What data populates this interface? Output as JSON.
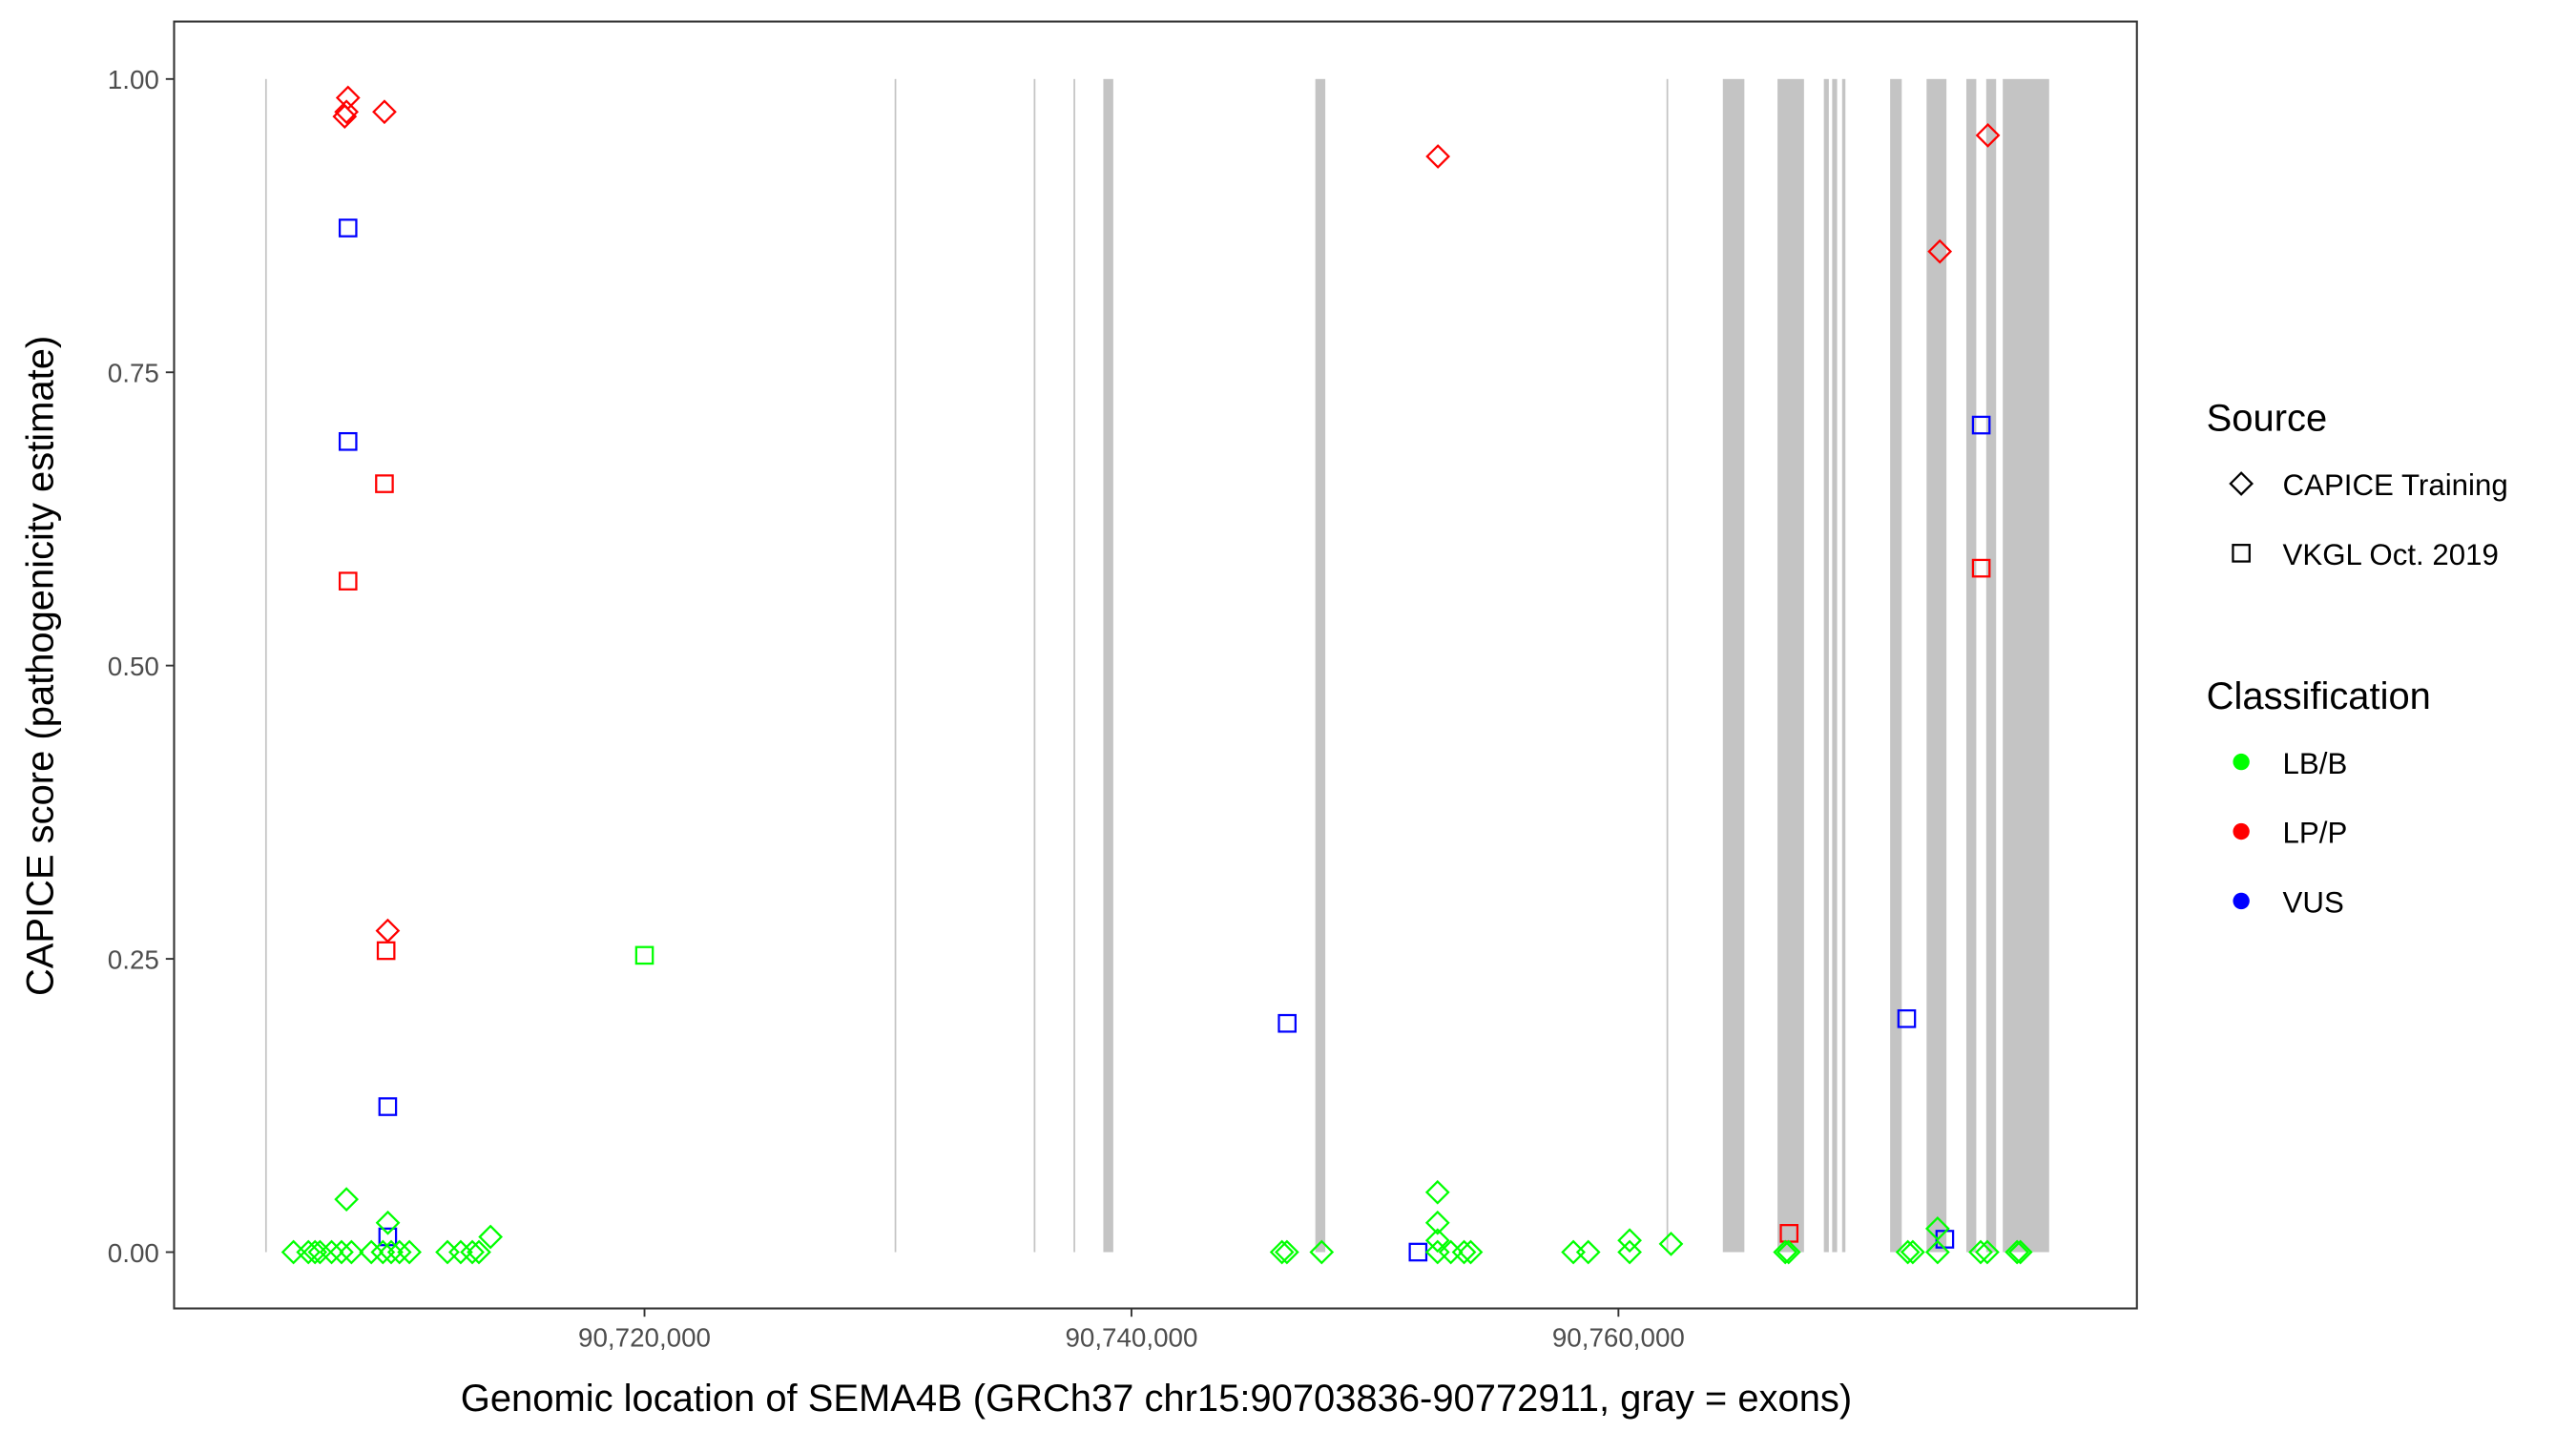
{
  "chart_data": {
    "type": "scatter",
    "xlabel": "Genomic location of SEMA4B (GRCh37 chr15:90703836-90772911, gray = exons)",
    "ylabel": "CAPICE score (pathogenicity estimate)",
    "xlim": [
      90700680,
      90781293
    ],
    "ylim": [
      -0.048,
      1.049
    ],
    "xticks": [
      {
        "value": 90720000,
        "label": "90,720,000"
      },
      {
        "value": 90740000,
        "label": "90,740,000"
      },
      {
        "value": 90760000,
        "label": "90,760,000"
      }
    ],
    "yticks": [
      {
        "value": 0,
        "label": "0.00"
      },
      {
        "value": 0.25,
        "label": "0.25"
      },
      {
        "value": 0.5,
        "label": "0.50"
      },
      {
        "value": 0.75,
        "label": "0.75"
      },
      {
        "value": 1,
        "label": "1.00"
      }
    ],
    "exon_color": "#c4c4c4",
    "exons": [
      [
        90704421,
        90704489
      ],
      [
        90730272,
        90730340
      ],
      [
        90735987,
        90736055
      ],
      [
        90737620,
        90737688
      ],
      [
        90738844,
        90739253
      ],
      [
        90747552,
        90747960
      ],
      [
        90761975,
        90762043
      ],
      [
        90764288,
        90765172
      ],
      [
        90766533,
        90767621
      ],
      [
        90768437,
        90768641
      ],
      [
        90768778,
        90768982
      ],
      [
        90769186,
        90769322
      ],
      [
        90771159,
        90771635
      ],
      [
        90772655,
        90773472
      ],
      [
        90774288,
        90774696
      ],
      [
        90775104,
        90775512
      ],
      [
        90775785,
        90777689
      ]
    ],
    "source_title": "Source",
    "sources": [
      {
        "name": "CAPICE Training",
        "shape": "diamond"
      },
      {
        "name": "VKGL Oct. 2019",
        "shape": "square"
      }
    ],
    "classification_title": "Classification",
    "classifications": [
      {
        "name": "LB/B",
        "color": "#00ff00"
      },
      {
        "name": "LP/P",
        "color": "#ff0000"
      },
      {
        "name": "VUS",
        "color": "#0000ff"
      }
    ],
    "series": [
      {
        "source": 0,
        "classification": 1,
        "x": [
          90707823,
          90707687,
          90707760,
          90709319,
          90709455,
          90752586,
          90773199,
          90775172
        ],
        "values": [
          0.984,
          0.968,
          0.972,
          0.972,
          0.274,
          0.934,
          0.853,
          0.952
        ]
      },
      {
        "source": 1,
        "classification": 1,
        "x": [
          90709319,
          90707823,
          90709387,
          90767009,
          90774900
        ],
        "values": [
          0.655,
          0.572,
          0.257,
          0.016,
          0.583
        ]
      },
      {
        "source": 1,
        "classification": 2,
        "x": [
          90707823,
          90707823,
          90709455,
          90709455,
          90746396,
          90751770,
          90771839,
          90773404,
          90774900
        ],
        "values": [
          0.873,
          0.691,
          0.124,
          0.013,
          0.195,
          0,
          0.199,
          0.011,
          0.705
        ]
      },
      {
        "source": 1,
        "classification": 0,
        "x": [
          90720000
        ],
        "values": [
          0.253
        ]
      },
      {
        "source": 0,
        "classification": 0,
        "x": [
          90705584,
          90706196,
          90706468,
          90706672,
          90707148,
          90707556,
          90707964,
          90708780,
          90709256,
          90709596,
          90709936,
          90710344,
          90711908,
          90712452,
          90712928,
          90713200,
          90713676,
          90707760,
          90709460,
          90746180,
          90746384,
          90747812,
          90752572,
          90752572,
          90752572,
          90752572,
          90753116,
          90753660,
          90753932,
          90758148,
          90758760,
          90760460,
          90760460,
          90762160,
          90766852,
          90766988,
          90771884,
          90772088,
          90773108,
          90773108,
          90774876,
          90775148,
          90776372,
          90776508
        ],
        "values": [
          0,
          0,
          0,
          0,
          0,
          0,
          0,
          0,
          0,
          0,
          0,
          0,
          0,
          0,
          0,
          0,
          0.013,
          0.045,
          0.025,
          0,
          0,
          0,
          0.051,
          0.025,
          0.01,
          0,
          0,
          0,
          0,
          0,
          0,
          0,
          0.01,
          0.007,
          0,
          0,
          0,
          0,
          0.02,
          0,
          0,
          0,
          0,
          0
        ]
      }
    ]
  }
}
